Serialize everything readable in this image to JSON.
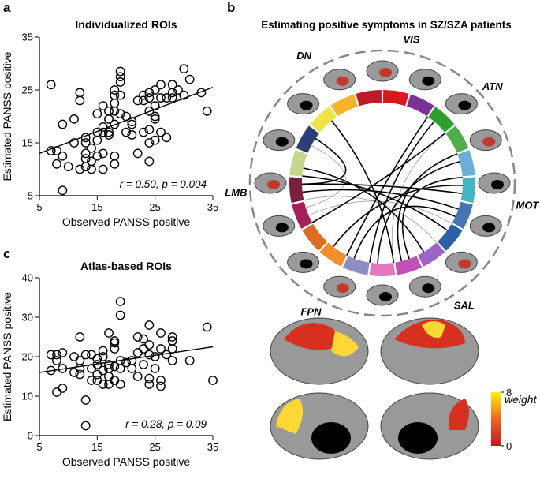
{
  "panel_labels": [
    "a",
    "b",
    "c"
  ],
  "chart_data": [
    {
      "type": "scatter",
      "title": "Individualized ROIs",
      "xlabel": "Observed PANSS positive",
      "ylabel": "Estimated PANSS positive",
      "annotation": "r = 0.50, p = 0.004",
      "xlim": [
        5,
        35
      ],
      "xticks": [
        5,
        15,
        25,
        35
      ],
      "ylim": [
        5,
        35
      ],
      "yticks": [
        5,
        15,
        25,
        35
      ],
      "x": [
        7,
        7,
        8,
        8,
        9,
        9,
        9,
        10,
        11,
        11,
        12,
        12,
        12,
        13,
        13,
        13,
        13,
        13,
        14,
        14,
        14,
        15,
        15,
        15,
        15,
        16,
        16,
        16,
        16,
        16,
        17,
        17,
        17,
        17,
        18,
        18,
        18,
        18,
        18,
        18,
        18,
        19,
        19,
        19,
        19,
        19,
        20,
        20,
        21,
        21,
        21,
        22,
        22,
        23,
        23,
        23,
        24,
        24,
        24,
        24,
        24,
        24,
        25,
        25,
        25,
        25,
        25,
        26,
        26,
        26,
        27,
        27,
        28,
        28,
        28,
        29,
        30,
        30,
        31,
        33,
        34
      ],
      "values": [
        26,
        13.5,
        13.5,
        11,
        18.5,
        6,
        12.5,
        10.5,
        15,
        19.5,
        24.5,
        23,
        10,
        12,
        15,
        13,
        16,
        10.5,
        14,
        10,
        11.5,
        20.5,
        15.5,
        17,
        12.5,
        18,
        17,
        22,
        10,
        13,
        16.5,
        21,
        17,
        19.5,
        18.5,
        21,
        25,
        24,
        22.5,
        12.5,
        11,
        28.5,
        27.5,
        26.5,
        20.5,
        24,
        20,
        17,
        16.5,
        18.5,
        19,
        13,
        23,
        24,
        23,
        17,
        24.5,
        23.5,
        21,
        17.5,
        15,
        11.5,
        25,
        22,
        20,
        15.5,
        19.5,
        26,
        23.5,
        17,
        16,
        23.5,
        23.5,
        24.5,
        26,
        25,
        29,
        24,
        27,
        24.5,
        21
      ],
      "fit": {
        "x": [
          5,
          35
        ],
        "values": [
          13,
          25.5
        ]
      }
    },
    {
      "type": "scatter",
      "title": "Atlas-based ROIs",
      "xlabel": "Observed PANSS positive",
      "ylabel": "Estimated PANSS positive",
      "annotation": "r = 0.28, p = 0.09",
      "xlim": [
        5,
        35
      ],
      "xticks": [
        5,
        15,
        25,
        35
      ],
      "ylim": [
        0,
        40
      ],
      "yticks": [
        0,
        10,
        20,
        30,
        40
      ],
      "x": [
        7,
        7,
        8,
        8,
        8,
        9,
        9,
        9,
        11,
        11,
        12,
        12,
        12,
        12,
        13,
        13,
        13,
        14,
        14,
        14,
        15,
        15,
        15,
        15,
        16,
        16,
        16,
        16,
        17,
        17,
        17,
        17,
        17,
        18,
        18,
        18,
        18,
        18,
        19,
        19,
        19,
        19,
        19,
        20,
        21,
        21,
        22,
        22,
        22,
        23,
        23,
        23,
        24,
        24,
        24,
        24,
        24,
        25,
        25,
        26,
        26,
        26,
        26,
        27,
        28,
        28,
        28,
        28,
        31,
        34,
        35
      ],
      "values": [
        20.5,
        16.5,
        11,
        19,
        20.5,
        12,
        21,
        17,
        16,
        20,
        25,
        19,
        17,
        15.5,
        9,
        2.5,
        20.5,
        17,
        20.5,
        14,
        18,
        15.5,
        14,
        19.5,
        16.5,
        13,
        21.5,
        20,
        18,
        17,
        15,
        13,
        26,
        22,
        24,
        23.5,
        17.5,
        14,
        34,
        30.5,
        19,
        17,
        13,
        18.5,
        19,
        17,
        25,
        21,
        15,
        24.5,
        22,
        18,
        28,
        23,
        20.5,
        14.5,
        13,
        20,
        17,
        26,
        22,
        14,
        12.5,
        20.5,
        25,
        24,
        22,
        19,
        19,
        27.5,
        14
      ],
      "fit": {
        "x": [
          5,
          35
        ],
        "values": [
          16,
          22.5
        ]
      }
    }
  ],
  "panel_b": {
    "title": "Estimating positive symptoms in SZ/SZA patients",
    "networks": [
      "DN",
      "VIS",
      "ATN",
      "MOT",
      "SAL",
      "FPN",
      "LMB"
    ],
    "colorbar": {
      "label": "weight",
      "ticks": [
        0,
        8
      ]
    }
  }
}
